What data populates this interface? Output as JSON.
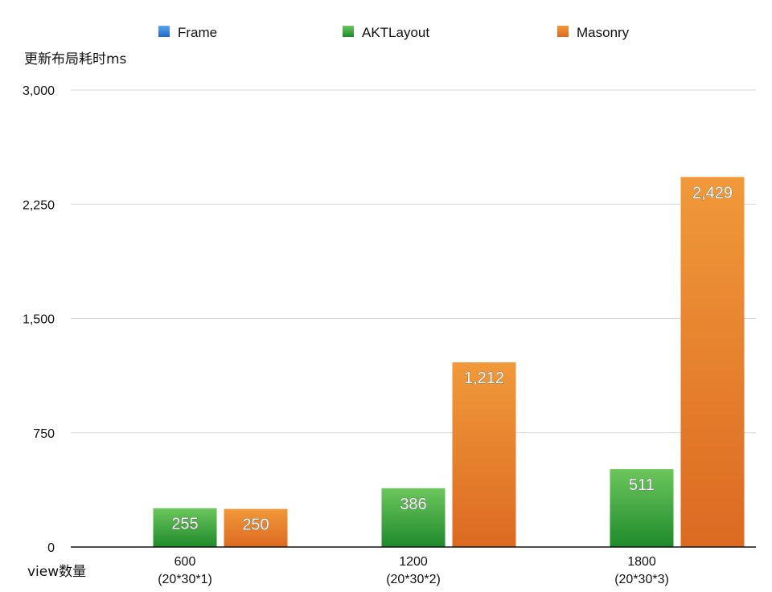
{
  "chart_data": {
    "type": "bar",
    "ylabel": "更新布局耗时ms",
    "xlabel": "view数量",
    "categories": [
      {
        "line1": "600",
        "line2": "(20*30*1)"
      },
      {
        "line1": "1200",
        "line2": "(20*30*2)"
      },
      {
        "line1": "1800",
        "line2": "(20*30*3)"
      }
    ],
    "ylim": [
      0,
      3000
    ],
    "yticks": [
      0,
      750,
      1500,
      2250,
      3000
    ],
    "ytick_labels": [
      "0",
      "750",
      "1,500",
      "2,250",
      "3,000"
    ],
    "grid": true,
    "legend_position": "top",
    "series": [
      {
        "name": "Frame",
        "color": "#2f7fd6",
        "values": [
          null,
          null,
          null
        ],
        "labels": [
          "",
          "",
          ""
        ]
      },
      {
        "name": "AKTLayout",
        "color": "#3aa03a",
        "values": [
          255,
          386,
          511
        ],
        "labels": [
          "255",
          "386",
          "511"
        ]
      },
      {
        "name": "Masonry",
        "color": "#e77e2c",
        "values": [
          250,
          1212,
          2429
        ],
        "labels": [
          "250",
          "1,212",
          "2,429"
        ]
      }
    ]
  }
}
